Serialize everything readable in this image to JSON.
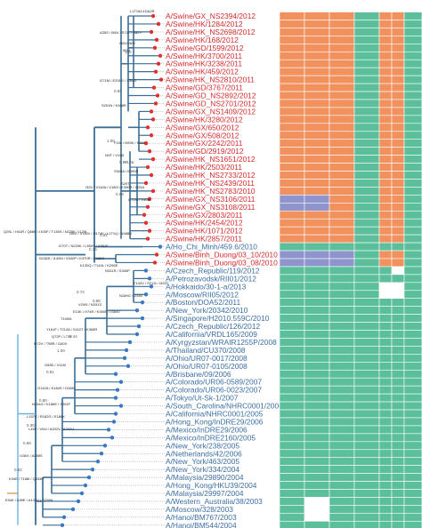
{
  "colors": {
    "swine_label": "#d42b2b",
    "human_label": "#3a6ea5",
    "branch_main": "#3b6e96",
    "branch_accent": "#6fb3d9",
    "tip_swine": "#e03030",
    "tip_human": "#3a78c2",
    "cell_orange": "#f0915e",
    "cell_teal": "#5cbf9c",
    "cell_purple": "#8f94cc",
    "cell_white": "#ffffff"
  },
  "taxa": [
    {
      "label": "A/Swine/GX_NS2394/2012",
      "group": "swine"
    },
    {
      "label": "A/Swine/HK/1284/2012",
      "group": "swine"
    },
    {
      "label": "A/Swine/HK_NS2698/2012",
      "group": "swine"
    },
    {
      "label": "A/Swine/HK/168/2012",
      "group": "swine"
    },
    {
      "label": "A/Swine/GD/1599/2012",
      "group": "swine"
    },
    {
      "label": "A/Swine/HK/3700/2011",
      "group": "swine"
    },
    {
      "label": "A/Swine/HK/3238/2011",
      "group": "swine"
    },
    {
      "label": "A/Swine/HK/459/2012",
      "group": "swine"
    },
    {
      "label": "A/Swine/HK_NS2810/2011",
      "group": "swine"
    },
    {
      "label": "A/Swine/GD/3767/2011",
      "group": "swine"
    },
    {
      "label": "A/Swine/GD_NS2892/2012",
      "group": "swine"
    },
    {
      "label": "A/Swine/GD_NS2701/2012",
      "group": "swine"
    },
    {
      "label": "A/Swine/GX_NS1409/2012",
      "group": "swine"
    },
    {
      "label": "A/Swine/HK/3280/2012",
      "group": "swine"
    },
    {
      "label": "A/Swine/GX/650/2012",
      "group": "swine"
    },
    {
      "label": "A/Swine/GX/508/2012",
      "group": "swine"
    },
    {
      "label": "A/Swine/GX/2242/2011",
      "group": "swine"
    },
    {
      "label": "A/Swine/GD/2919/2012",
      "group": "swine"
    },
    {
      "label": "A/Swine/HK_NS1651/2012",
      "group": "swine"
    },
    {
      "label": "A/Swine/HK/2503/2011",
      "group": "swine"
    },
    {
      "label": "A/Swine/HK_NS2733/2012",
      "group": "swine"
    },
    {
      "label": "A/Swine/HK_NS2439/2011",
      "group": "swine"
    },
    {
      "label": "A/Swine/HK_NS2783/2010",
      "group": "swine"
    },
    {
      "label": "A/Swine/GX_NS3106/2011",
      "group": "swine"
    },
    {
      "label": "A/Swine/GX_NS3108/2011",
      "group": "swine"
    },
    {
      "label": "A/Swine/GX/2803/2011",
      "group": "swine"
    },
    {
      "label": "A/Swine/HK/2454/2012",
      "group": "swine"
    },
    {
      "label": "A/Swine/HK/1071/2012",
      "group": "swine"
    },
    {
      "label": "A/Swine/HK/2857/2011",
      "group": "swine"
    },
    {
      "label": "A/Ho_Chi_Minh/459.6/2010",
      "group": "human"
    },
    {
      "label": "A/Swine/Binh_Duong/03_10/2010",
      "group": "swine"
    },
    {
      "label": "A/Swine/Binh_Duong/03_08/2010",
      "group": "swine"
    },
    {
      "label": "A/Czech_Republic/119/2012",
      "group": "human"
    },
    {
      "label": "A/Petrozavodsk/RII01/2012",
      "group": "human"
    },
    {
      "label": "A/Hokkaido/30-1-a/2013",
      "group": "human"
    },
    {
      "label": "A/Moscow/RII05/2012",
      "group": "human"
    },
    {
      "label": "A/Boston/DOA52/2011",
      "group": "human"
    },
    {
      "label": "A/New_York/20342/2010",
      "group": "human"
    },
    {
      "label": "A/Singapore/H2010.559C/2010",
      "group": "human"
    },
    {
      "label": "A/Czech_Republic/126/2012",
      "group": "human"
    },
    {
      "label": "A/California/VRDL165/2009",
      "group": "human"
    },
    {
      "label": "A/Kyrgyzstan/WRAIR1255P/2008",
      "group": "human"
    },
    {
      "label": "A/Thailand/CU370/2008",
      "group": "human"
    },
    {
      "label": "A/Ohio/UR07-0017/2008",
      "group": "human"
    },
    {
      "label": "A/Ohio/UR07-0105/2008",
      "group": "human"
    },
    {
      "label": "A/Brisbane/09/2006",
      "group": "human"
    },
    {
      "label": "A/Colorado/UR06-0589/2007",
      "group": "human"
    },
    {
      "label": "A/Colorado/UR06-0023/2007",
      "group": "human"
    },
    {
      "label": "A/Tokyo/Ut-Sk-1/2007",
      "group": "human"
    },
    {
      "label": "A/South_Carolina/NHRC0001/2006",
      "group": "human"
    },
    {
      "label": "A/California/NHRC0001/2005",
      "group": "human"
    },
    {
      "label": "A/Hong_Kong/InDRE29/2006",
      "group": "human"
    },
    {
      "label": "A/Mexico/InDRE29/2006",
      "group": "human"
    },
    {
      "label": "A/Mexico/InDRE2160/2005",
      "group": "human"
    },
    {
      "label": "A/New_York/238/2005",
      "group": "human"
    },
    {
      "label": "A/Netherlands/42/2006",
      "group": "human"
    },
    {
      "label": "A/New_York/463/2005",
      "group": "human"
    },
    {
      "label": "A/New_York/334/2004",
      "group": "human"
    },
    {
      "label": "A/Malaysia/29890/2004",
      "group": "human"
    },
    {
      "label": "A/Hong_Kong/HKU39/2004",
      "group": "human"
    },
    {
      "label": "A/Malaysia/29997/2004",
      "group": "human"
    },
    {
      "label": "A/Western_Australia/38/2003",
      "group": "human"
    },
    {
      "label": "A/Moscow/328/2003",
      "group": "human"
    },
    {
      "label": "A/Hanoi/BM767/2003",
      "group": "human"
    },
    {
      "label": "A/Hanoi/BM544/2004",
      "group": "human"
    }
  ],
  "mutation_labels": [
    "L1T15/L1DA2R",
    "A35S / I66V / S71T / S82Y",
    "I36V/V65I",
    "I81V",
    "I271M / E291G / V306I",
    "S251N / K368R",
    "F15L / N53K / K390",
    "I45T / V110I",
    "V173I",
    "S305A / K390R",
    "S29T",
    "I32V / V116A / V180I / K390R / I325A",
    "I271M / V306I",
    "Q25L / H41R / Q68K / I105F / T136S / N225K / I125L",
    "I36V / V116V / N174K / L271Q / N388D",
    "I270T / N220K / L380V / Y391F",
    "N138S / I140M / S340P / K370R / E385G",
    "K130Q / T140L / K295E",
    "N331R / S345P",
    "F142V / S213I / I325T",
    "N189G / I245V",
    "V200I / N331S",
    "E13K / H74R / K350R / I384V",
    "T100M",
    "Y161F / T212A / S412T / K365R",
    "Q72P / L73Y",
    "M72V / T98R / I140V",
    "G83D / V116I",
    "G142A / K184S / I138N",
    "N154G / K186E / Y204F",
    "L157V / R182G / E188K",
    "L46F / V94I / A202V / A242V",
    "I136V / A258S",
    "K34E / T188I / Q334P",
    "E54K / A99E / A142V / S226N"
  ],
  "support_values": [
    "100",
    "0.89",
    "1.00",
    "0.97",
    "0.99",
    "0.62",
    "0.36",
    "0.72",
    "0.98",
    "0.44",
    "1.00",
    "0.91",
    "0.80",
    "0.30",
    "0.69",
    "0.92"
  ]
}
